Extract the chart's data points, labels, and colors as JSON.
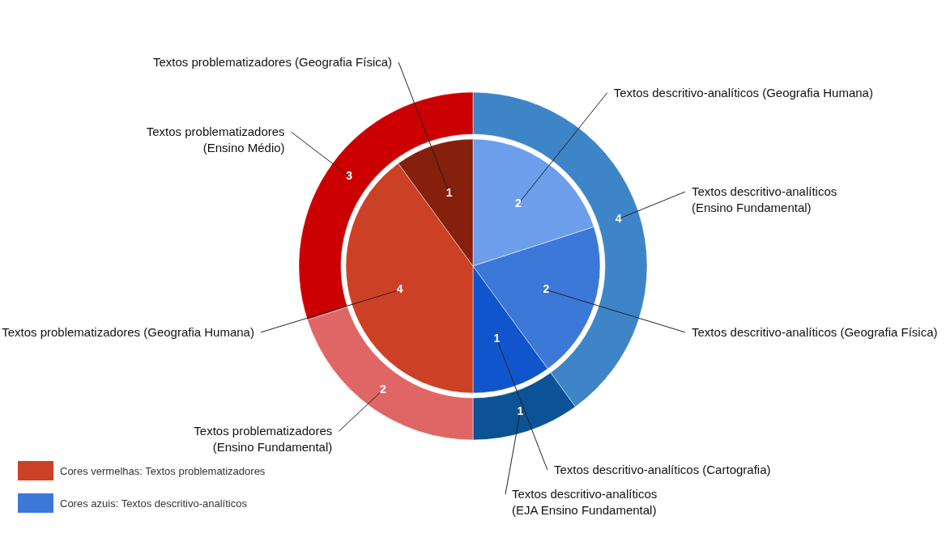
{
  "chart_data": [
    {
      "type": "pie",
      "data_labels": true,
      "categories": [
        "Textos descritivo-analíticos (Geografia Humana)",
        "Textos descritivo-analíticos (Geografia Física)",
        "Textos descritivo-analíticos (Cartografia)",
        "Textos problematizadores (Geografia Humana)",
        "Textos problematizadores (Geografia Física)"
      ],
      "values": [
        2,
        2,
        1,
        4,
        1
      ],
      "colors": [
        "#6d9eeb",
        "#3c78d8",
        "#1155cc",
        "#cc4125",
        "#85200c"
      ],
      "annotations": [
        "Cores vermelhas: Textos problematizadores",
        "Cores azuis: Textos descritivo-analíticos"
      ]
    },
    {
      "type": "donut",
      "data_labels": true,
      "categories": [
        "Textos descritivo-analíticos (Ensino Fundamental)",
        "Textos descritivo-analíticos (EJA Ensino Fundamental)",
        "Textos problematizadores (Ensino Fundamental)",
        "Textos problematizadores (Ensino Médio)"
      ],
      "values": [
        4,
        1,
        2,
        3
      ],
      "colors": [
        "#3d85c6",
        "#0b5394",
        "#e06666",
        "#cc0000"
      ]
    }
  ]
}
